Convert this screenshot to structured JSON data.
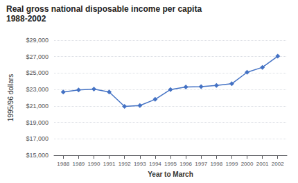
{
  "chart_data": {
    "type": "line",
    "title": "Real gross national disposable income per capita",
    "subtitle": "1988-2002",
    "x_label": "Year to March",
    "y_label": "1995/96 dollars",
    "x": [
      1988,
      1989,
      1990,
      1991,
      1992,
      1993,
      1994,
      1995,
      1996,
      1997,
      1998,
      1999,
      2000,
      2001,
      2002
    ],
    "values": [
      22700,
      22950,
      23050,
      22700,
      20950,
      21050,
      21800,
      23000,
      23300,
      23350,
      23500,
      23700,
      25100,
      25700,
      27050
    ],
    "color": "#4472c4",
    "marker": "diamond",
    "xlim": [
      1987.4,
      2002.6
    ],
    "xticks": [
      1988,
      1989,
      1990,
      1991,
      1992,
      1993,
      1994,
      1995,
      1996,
      1997,
      1998,
      1999,
      2000,
      2001,
      2002
    ],
    "ylim": [
      15000,
      29000
    ],
    "yticks": [
      {
        "value": 15000,
        "label": "$15,000"
      },
      {
        "value": 17000,
        "label": "$17,000"
      },
      {
        "value": 19000,
        "label": "$19,000"
      },
      {
        "value": 21000,
        "label": "$21,000"
      },
      {
        "value": 23000,
        "label": "$23,000"
      },
      {
        "value": 25000,
        "label": "$25,000"
      },
      {
        "value": 27000,
        "label": "$27,000"
      },
      {
        "value": 29000,
        "label": "$29,000"
      }
    ],
    "grid": true
  }
}
